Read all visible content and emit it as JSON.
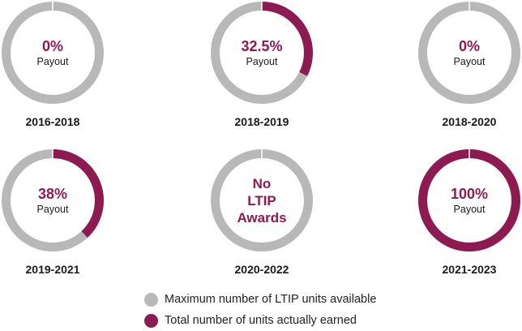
{
  "colors": {
    "available": "#b8b8b8",
    "earned": "#8e1a52",
    "text": "#1a1a1a"
  },
  "chart_data": {
    "type": "pie",
    "title": "",
    "charts": [
      {
        "period": "2016-2018",
        "payout_percent": 0,
        "center_value": "0%",
        "center_sub": "Payout"
      },
      {
        "period": "2018-2019",
        "payout_percent": 32.5,
        "center_value": "32.5%",
        "center_sub": "Payout"
      },
      {
        "period": "2018-2020",
        "payout_percent": 0,
        "center_value": "0%",
        "center_sub": "Payout"
      },
      {
        "period": "2019-2021",
        "payout_percent": 38,
        "center_value": "38%",
        "center_sub": "Payout"
      },
      {
        "period": "2020-2022",
        "payout_percent": 0,
        "center_lines": [
          "No",
          "LTIP",
          "Awards"
        ]
      },
      {
        "period": "2021-2023",
        "payout_percent": 100,
        "center_value": "100%",
        "center_sub": "Payout"
      }
    ],
    "legend": [
      {
        "label": "Maximum number of LTIP units available",
        "color": "#b8b8b8"
      },
      {
        "label": "Total number of units actually earned",
        "color": "#8e1a52"
      }
    ]
  }
}
